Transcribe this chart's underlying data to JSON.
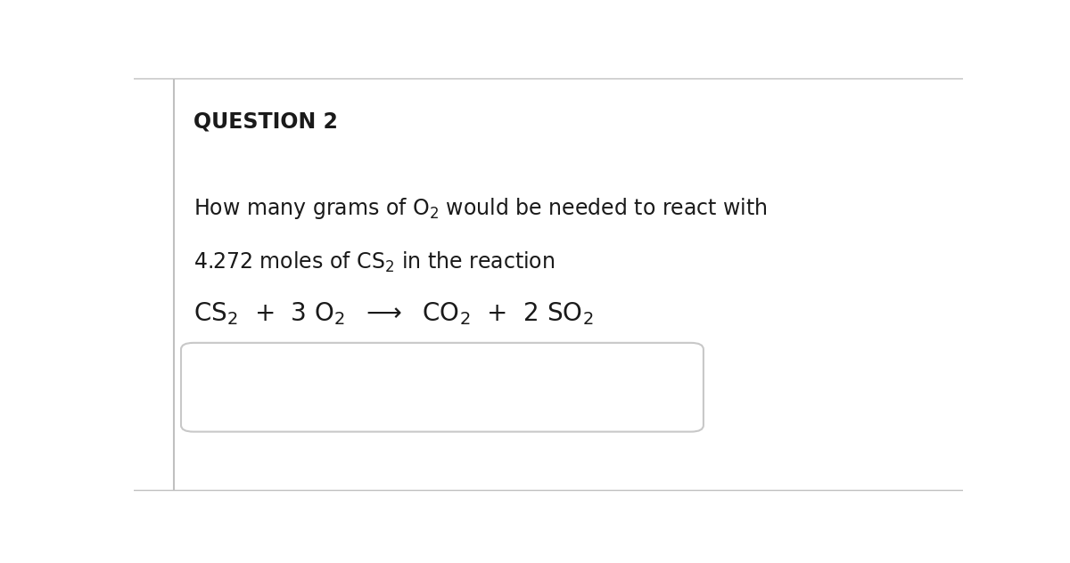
{
  "background_color": "#ffffff",
  "border_color": "#c0c0c0",
  "text_color": "#1a1a1a",
  "question_label": "QUESTION 2",
  "question_fontsize": 17,
  "body_fontsize": 17,
  "reaction_fontsize": 20,
  "answer_box_color": "#c8c8c8",
  "left_bar_color": "#c0c0c0"
}
